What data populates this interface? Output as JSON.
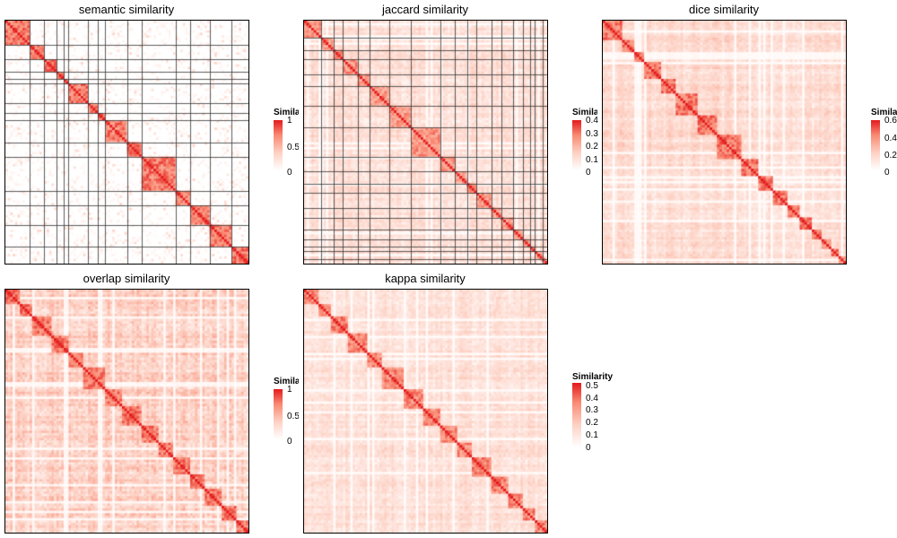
{
  "chart_data": [
    {
      "type": "heatmap",
      "title": "semantic similarity",
      "legend": {
        "title": "Similarity",
        "ticks": [
          "1",
          "0.5",
          "0"
        ],
        "max": 1.0
      },
      "n": 100,
      "pattern": "semantic",
      "split_lines": true
    },
    {
      "type": "heatmap",
      "title": "jaccard similarity",
      "legend": {
        "title": "Similarity",
        "ticks": [
          "0.4",
          "0.3",
          "0.2",
          "0.1",
          "0"
        ],
        "max": 0.4
      },
      "n": 100,
      "pattern": "jaccard",
      "split_lines": true
    },
    {
      "type": "heatmap",
      "title": "dice similarity",
      "legend": {
        "title": "Similarity",
        "ticks": [
          "0.6",
          "0.4",
          "0.2",
          "0"
        ],
        "max": 0.6
      },
      "n": 100,
      "pattern": "dice",
      "split_lines": false
    },
    {
      "type": "heatmap",
      "title": "overlap similarity",
      "legend": {
        "title": "Similarity",
        "ticks": [
          "1",
          "0.5",
          "0"
        ],
        "max": 1.0
      },
      "n": 100,
      "pattern": "overlap",
      "split_lines": false
    },
    {
      "type": "heatmap",
      "title": "kappa similarity",
      "legend": {
        "title": "Similarity",
        "ticks": [
          "0.5",
          "0.4",
          "0.3",
          "0.2",
          "0.1",
          "0"
        ],
        "max": 0.5
      },
      "n": 100,
      "pattern": "kappa",
      "split_lines": false
    }
  ]
}
